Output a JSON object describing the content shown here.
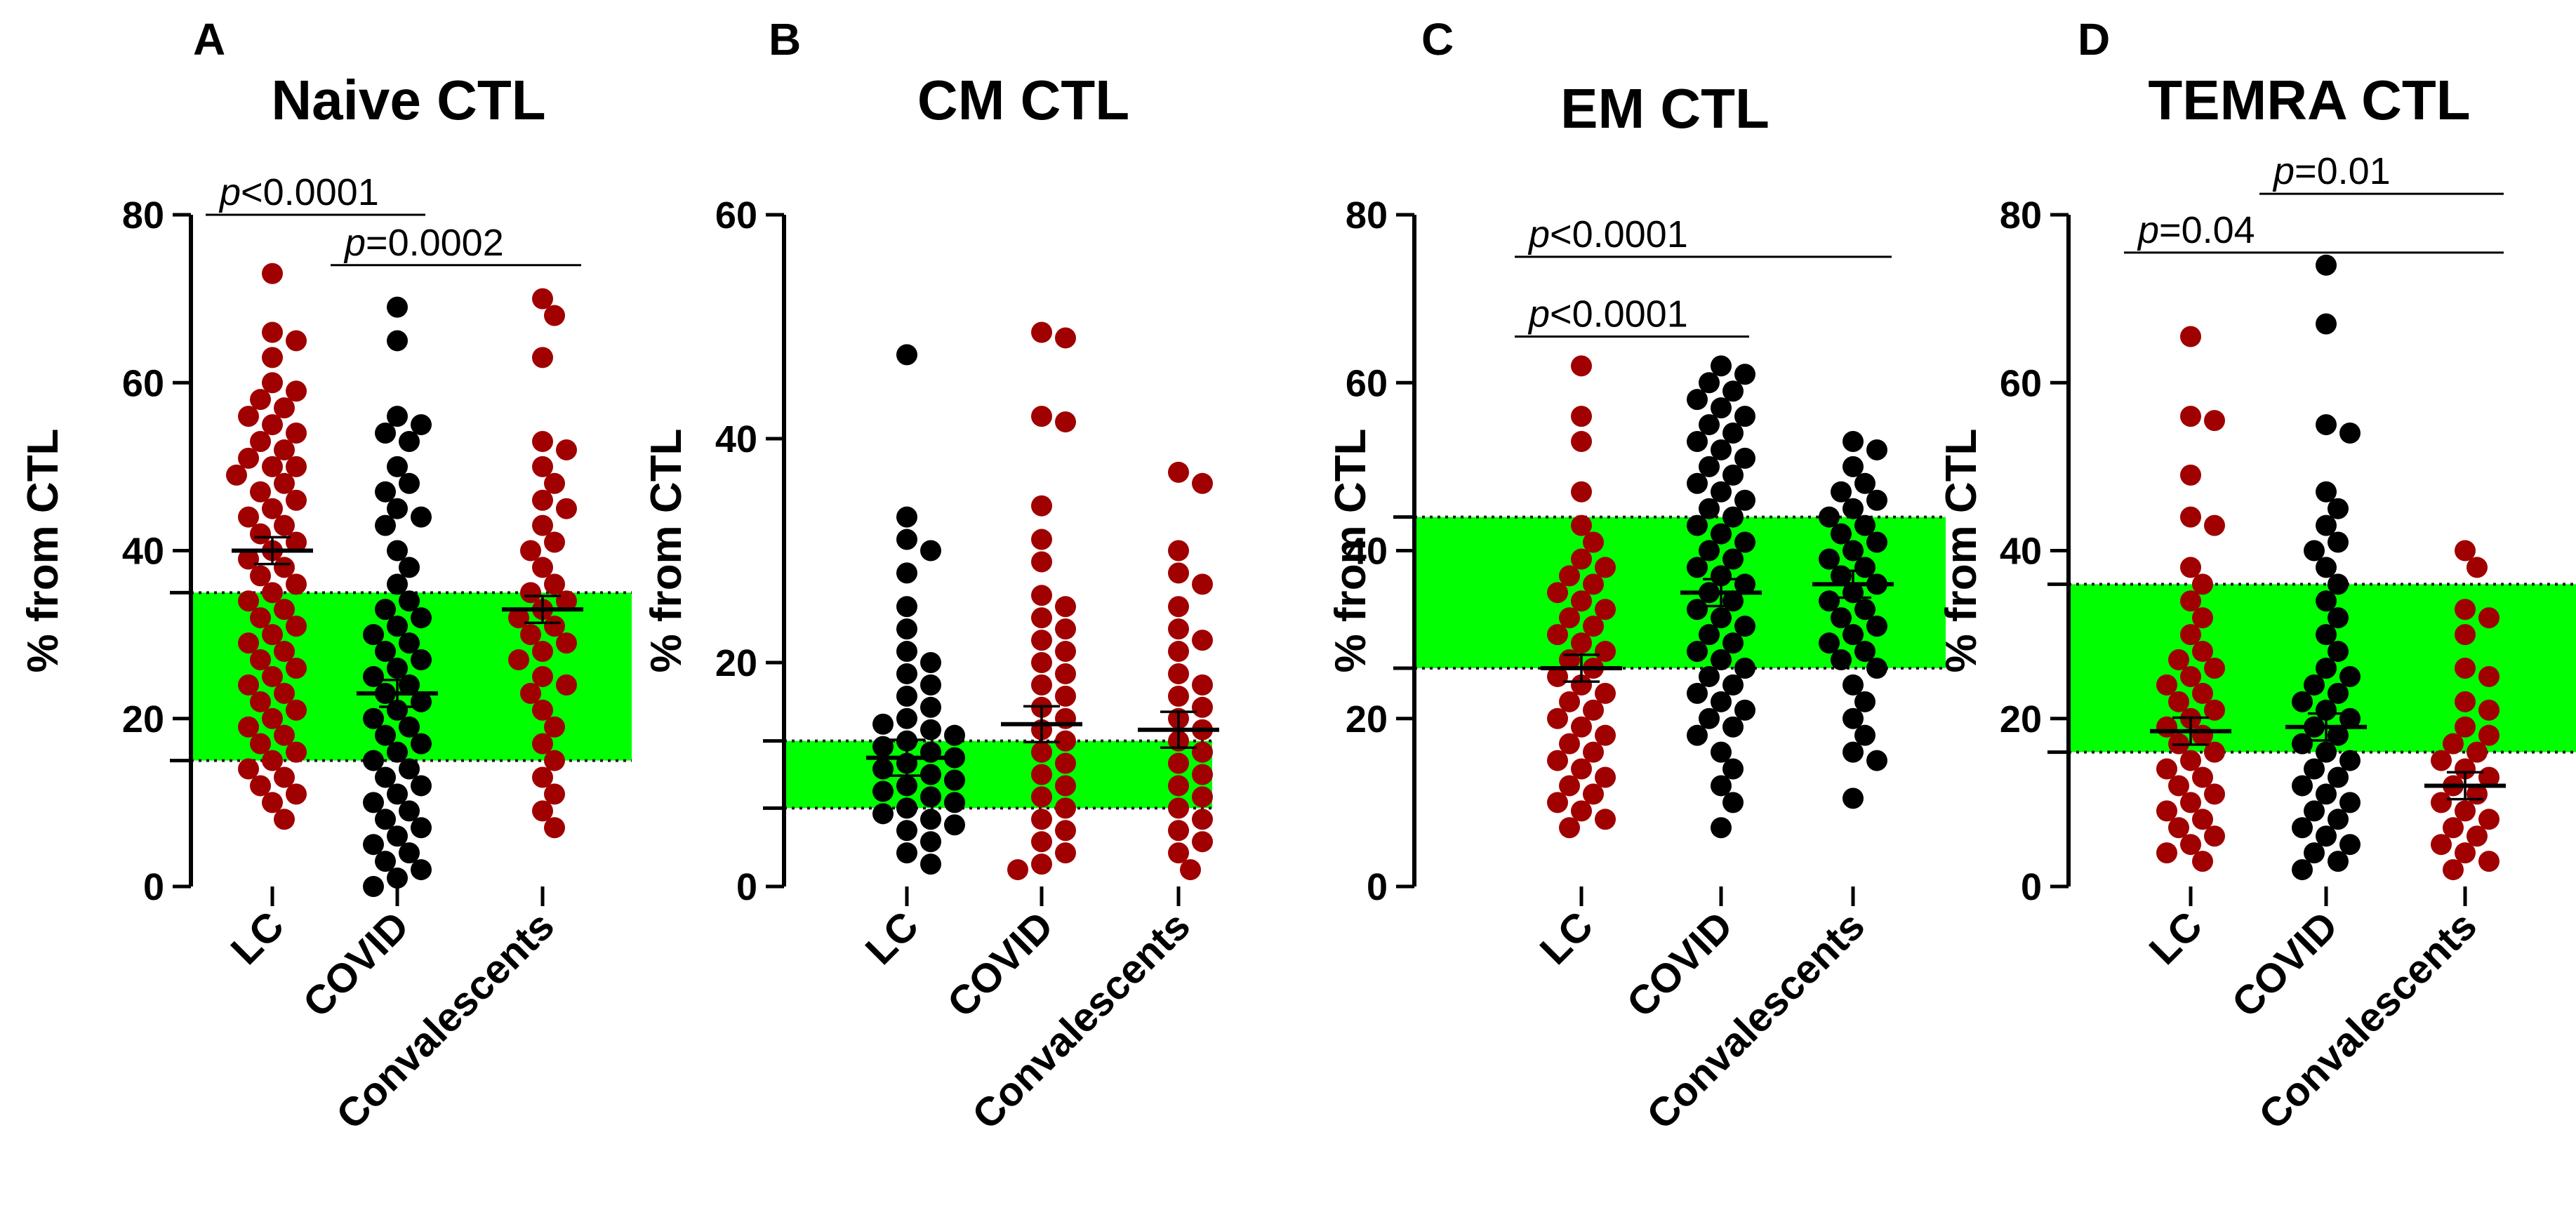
{
  "chart_data": [
    {
      "type": "scatter",
      "panel": "A",
      "title": "Naive CTL",
      "ylabel": "% from CTL",
      "ylim": [
        0,
        80
      ],
      "yticks": [
        0,
        20,
        40,
        60,
        80
      ],
      "categories": [
        "LC",
        "COVID",
        "Convalescents"
      ],
      "reference_band": [
        15,
        35
      ],
      "colors": [
        "#a00000",
        "#000000",
        "#a00000"
      ],
      "means": [
        40,
        23,
        33
      ],
      "series": [
        {
          "name": "LC",
          "values": [
            73,
            66,
            65,
            63,
            60,
            59,
            58,
            57,
            56,
            55,
            54,
            53,
            52,
            51,
            50,
            50,
            49,
            48,
            47,
            46,
            45,
            44,
            43,
            42,
            41,
            40,
            39,
            38,
            37,
            36,
            35,
            34,
            33,
            32,
            31,
            30,
            29,
            28,
            27,
            26,
            25,
            24,
            23,
            22,
            21,
            20,
            19,
            18,
            17,
            16,
            15,
            14,
            13,
            12,
            11,
            10,
            8
          ]
        },
        {
          "name": "COVID",
          "values": [
            69,
            65,
            56,
            55,
            54,
            53,
            50,
            48,
            47,
            45,
            44,
            43,
            40,
            38,
            36,
            34,
            33,
            32,
            31,
            30,
            29,
            28,
            27,
            26,
            25,
            24,
            23,
            22,
            21,
            20,
            19,
            18,
            17,
            16,
            15,
            14,
            13,
            12,
            11,
            10,
            9,
            8,
            7,
            6,
            5,
            4,
            3,
            2,
            1,
            0
          ]
        },
        {
          "name": "Convalescents",
          "values": [
            70,
            68,
            63,
            53,
            52,
            50,
            48,
            46,
            45,
            43,
            41,
            40,
            38,
            36,
            35,
            34,
            33,
            32,
            31,
            30,
            29,
            28,
            27,
            25,
            24,
            23,
            21,
            19,
            17,
            15,
            13,
            11,
            9,
            7
          ]
        }
      ],
      "annotations": [
        {
          "label_p": "p",
          "label_rest": "<0.0001",
          "from": 0,
          "to": 1,
          "y": 80
        },
        {
          "label_p": "p",
          "label_rest": "=0.0002",
          "from": 1,
          "to": 2,
          "y": 74
        }
      ]
    },
    {
      "type": "scatter",
      "panel": "B",
      "title": "CM CTL",
      "ylabel": "% from CTL",
      "ylim": [
        0,
        60
      ],
      "yticks": [
        0,
        20,
        40,
        60
      ],
      "categories": [
        "LC",
        "COVID",
        "Convalescents"
      ],
      "reference_band": [
        7,
        13
      ],
      "colors": [
        "#000000",
        "#a00000",
        "#a00000"
      ],
      "means": [
        11.5,
        14.5,
        14
      ],
      "series": [
        {
          "name": "LC",
          "values": [
            47.5,
            33,
            31,
            30,
            28,
            25,
            23,
            21,
            20,
            19,
            18,
            17,
            16,
            15,
            14.5,
            14,
            13.5,
            13,
            12.5,
            12,
            11.5,
            11,
            10.5,
            10,
            9.5,
            9,
            8.5,
            8,
            7.5,
            7,
            6.5,
            6,
            5.5,
            5,
            4,
            3,
            2
          ]
        },
        {
          "name": "COVID",
          "values": [
            49.5,
            49,
            42,
            41.5,
            34,
            31,
            29,
            26,
            25,
            24,
            23,
            22,
            21,
            20,
            19,
            18,
            17,
            16,
            15,
            14,
            13,
            12,
            11,
            10,
            9,
            8,
            7,
            6,
            5,
            4,
            3,
            2,
            1.5
          ]
        },
        {
          "name": "Convalescents",
          "values": [
            37,
            36,
            30,
            28,
            27,
            25,
            23,
            22,
            21,
            19,
            18,
            17,
            16,
            15,
            14,
            13,
            12,
            11,
            10,
            9,
            8,
            7,
            6,
            5,
            4,
            3,
            1.5
          ]
        }
      ],
      "annotations": []
    },
    {
      "type": "scatter",
      "panel": "C",
      "title": "EM CTL",
      "ylabel": "% from CTL",
      "ylim": [
        0,
        80
      ],
      "yticks": [
        0,
        20,
        40,
        60,
        80
      ],
      "categories": [
        "LC",
        "COVID",
        "Convalescents"
      ],
      "reference_band": [
        26,
        44
      ],
      "colors": [
        "#a00000",
        "#000000",
        "#000000"
      ],
      "means": [
        26,
        35,
        36
      ],
      "series": [
        {
          "name": "LC",
          "values": [
            62,
            56,
            53,
            47,
            43,
            41,
            39,
            38,
            37,
            36,
            35,
            34,
            33,
            32,
            31,
            30,
            29,
            28,
            27,
            26,
            25,
            24,
            23,
            22,
            21,
            20,
            19,
            18,
            17,
            16,
            15,
            14,
            13,
            12,
            11,
            10,
            9,
            8,
            7
          ]
        },
        {
          "name": "COVID",
          "values": [
            62,
            61,
            60,
            59,
            58,
            57,
            56,
            55,
            54,
            53,
            52,
            51,
            50,
            49,
            48,
            47,
            46,
            45,
            44,
            43,
            42,
            41,
            40,
            39,
            38,
            37,
            36,
            35,
            34,
            33,
            32,
            31,
            30,
            29,
            28,
            27,
            26,
            25,
            24,
            23,
            22,
            21,
            20,
            19,
            18,
            16,
            14,
            12,
            10,
            7
          ]
        },
        {
          "name": "Convalescents",
          "values": [
            53,
            52,
            50,
            48,
            47,
            46,
            45,
            44,
            43,
            42,
            41,
            40,
            39,
            38,
            37,
            36,
            35,
            34,
            33,
            32,
            31,
            30,
            29,
            28,
            27,
            26,
            24,
            22,
            20,
            18,
            16,
            15,
            10.5
          ]
        }
      ],
      "annotations": [
        {
          "label_p": "p",
          "label_rest": "<0.0001",
          "from": 0,
          "to": 2,
          "y": 75
        },
        {
          "label_p": "p",
          "label_rest": "<0.0001",
          "from": 0,
          "to": 1,
          "y": 65.5
        }
      ]
    },
    {
      "type": "scatter",
      "panel": "D",
      "title": "TEMRA CTL",
      "ylabel": "% from CTL",
      "ylim": [
        0,
        80
      ],
      "yticks": [
        0,
        20,
        40,
        60,
        80
      ],
      "categories": [
        "LC",
        "COVID",
        "Convalescents"
      ],
      "reference_band": [
        16,
        36
      ],
      "colors": [
        "#a00000",
        "#000000",
        "#a00000"
      ],
      "means": [
        18.5,
        19,
        12
      ],
      "series": [
        {
          "name": "LC",
          "values": [
            65.5,
            56,
            55.5,
            49,
            44,
            43,
            38,
            36,
            34,
            32,
            30,
            28,
            27,
            26,
            25,
            24,
            23,
            22,
            21,
            20,
            19,
            18,
            17,
            16,
            15,
            14,
            13,
            12,
            11,
            10,
            9,
            8,
            7,
            6,
            5,
            4,
            3
          ]
        },
        {
          "name": "COVID",
          "values": [
            74,
            67,
            55,
            54,
            47,
            45,
            43,
            41,
            40,
            38,
            36,
            34,
            32,
            30,
            28,
            26,
            25,
            24,
            23,
            22,
            21,
            20,
            19,
            18,
            17,
            16,
            15,
            14,
            13,
            12,
            11,
            10,
            9,
            8,
            7,
            6,
            5,
            4,
            3,
            2
          ]
        },
        {
          "name": "Convalescents",
          "values": [
            40,
            38,
            33,
            32,
            30,
            26,
            25,
            22,
            21,
            19,
            18,
            17,
            16,
            15,
            14,
            13,
            12,
            11,
            10,
            9,
            8,
            7,
            6,
            5,
            4,
            3,
            2
          ]
        }
      ],
      "annotations": [
        {
          "label_p": "p",
          "label_rest": "=0.01",
          "from": 1,
          "to": 2,
          "y": 82.5
        },
        {
          "label_p": "p",
          "label_rest": "=0.04",
          "from": 0,
          "to": 2,
          "y": 75.5
        }
      ]
    }
  ]
}
